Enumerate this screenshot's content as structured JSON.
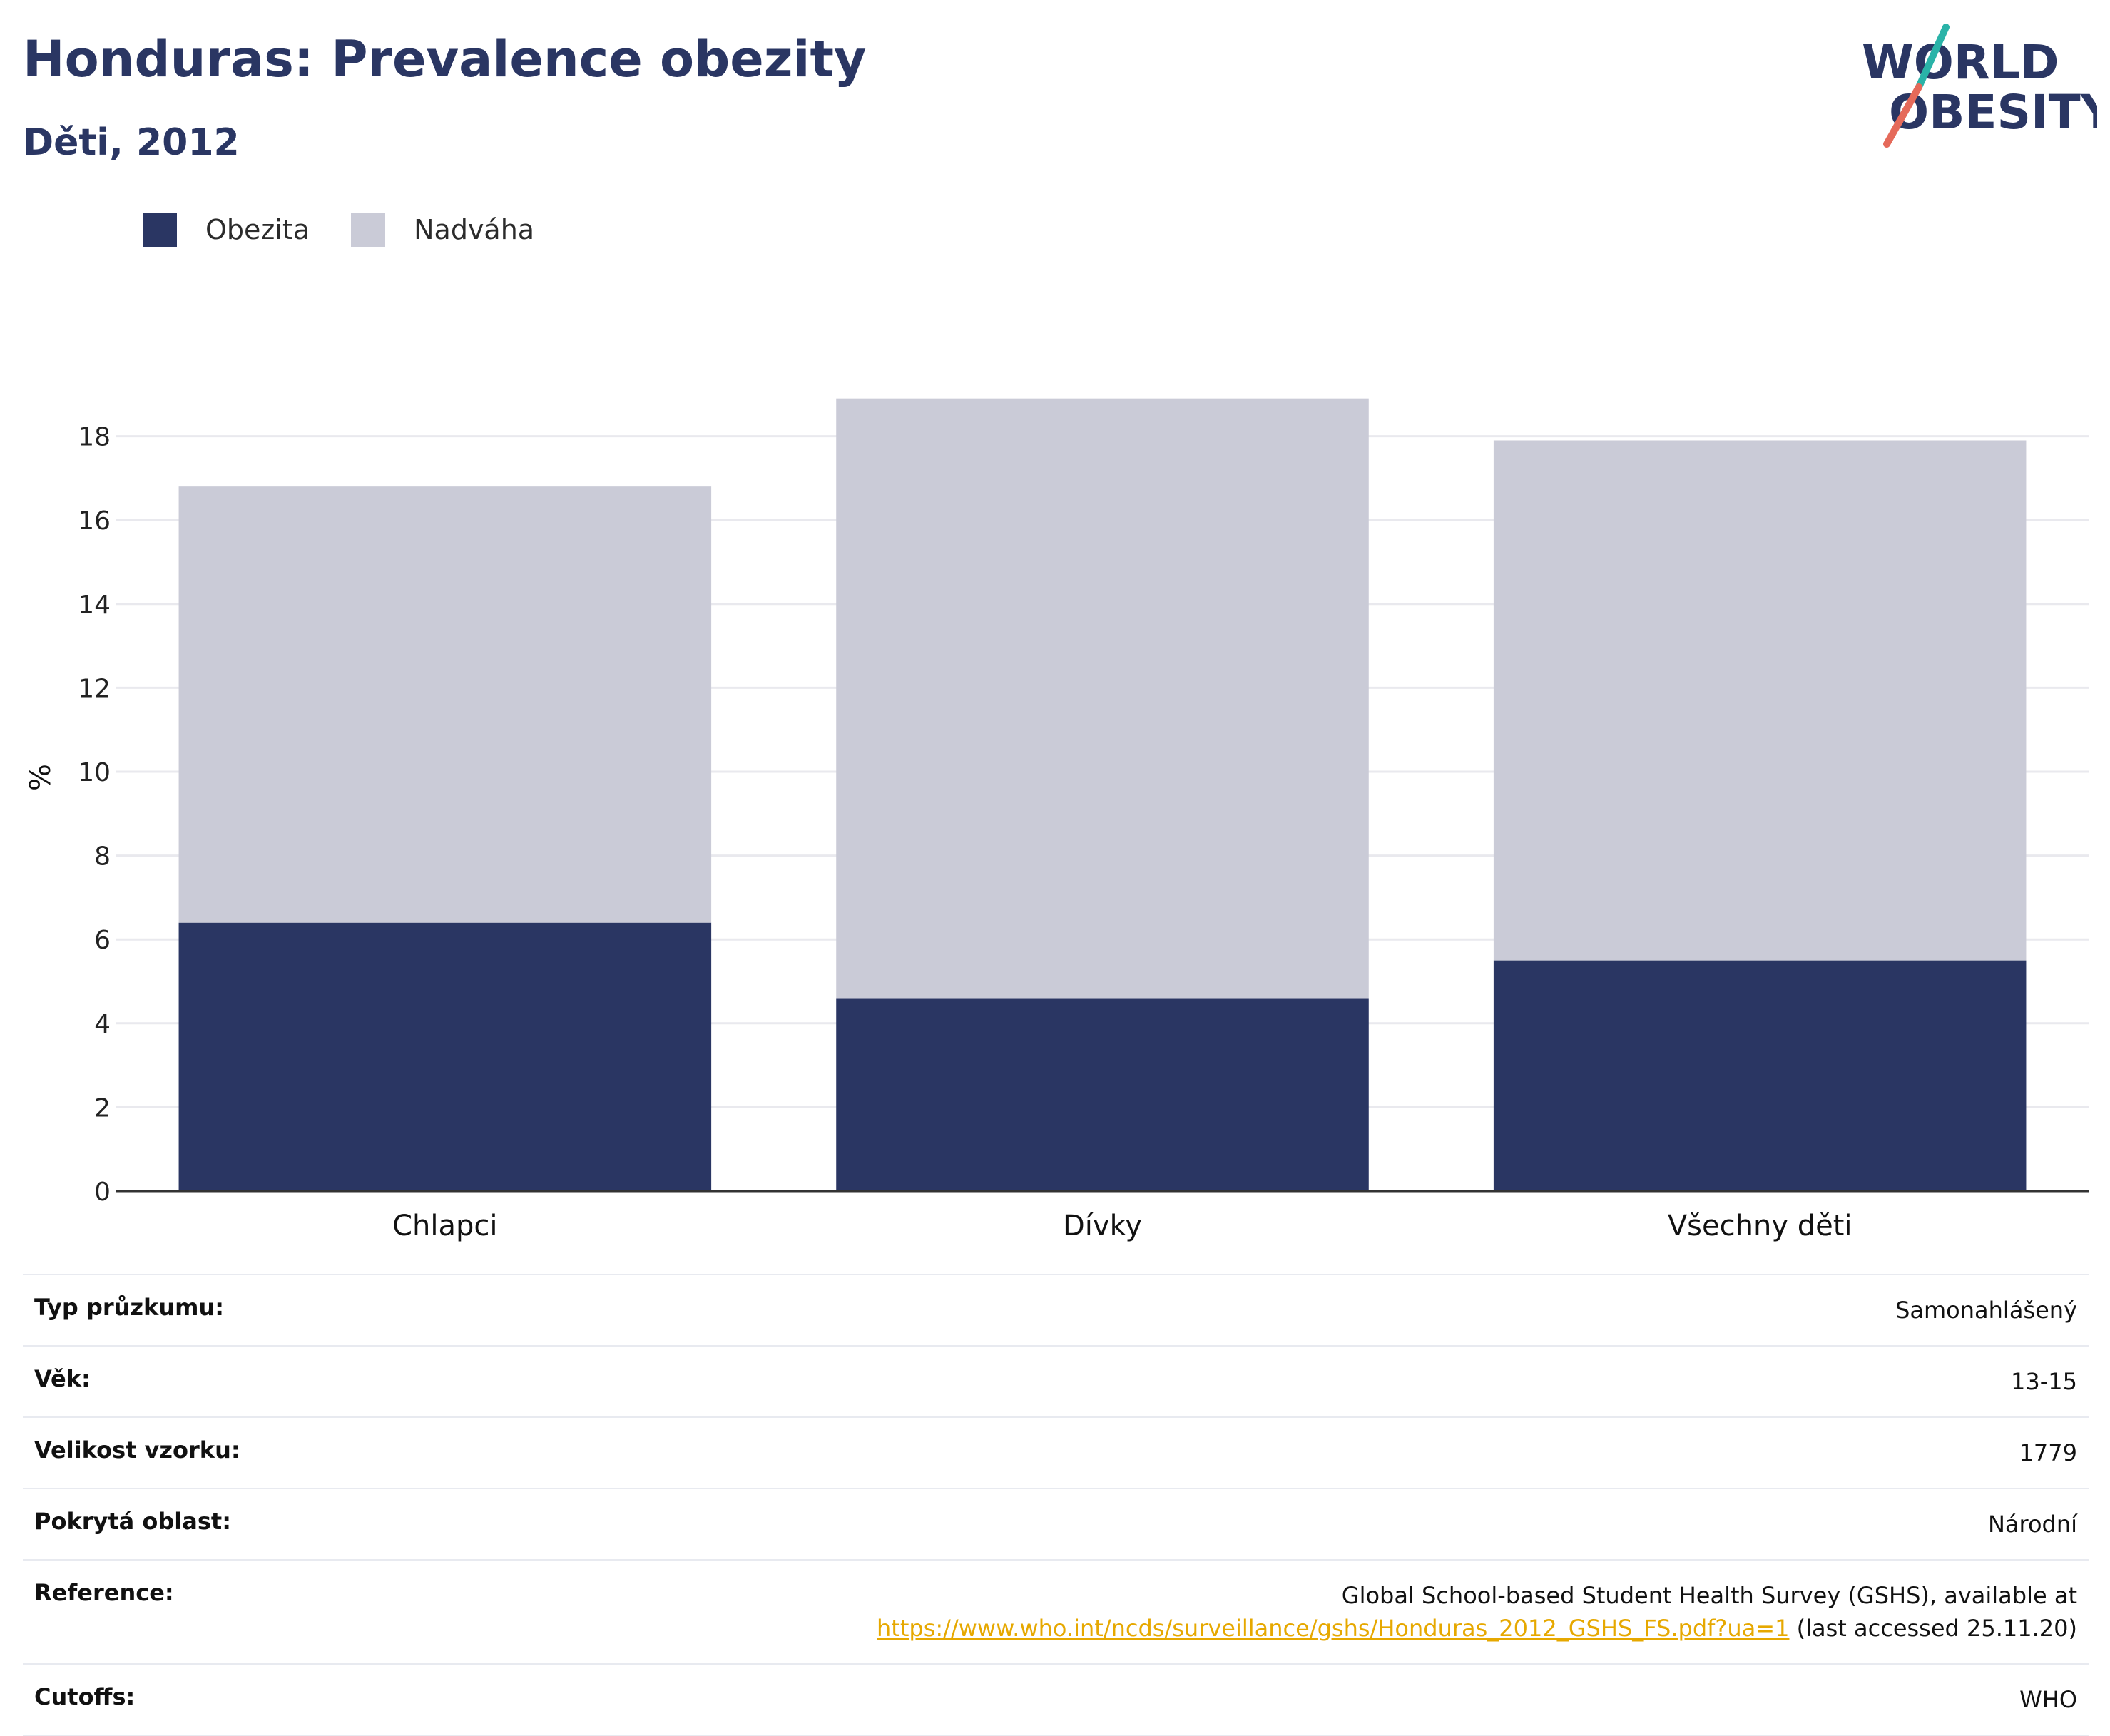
{
  "header": {
    "title": "Honduras: Prevalence obezity",
    "subtitle": "Děti, 2012",
    "logo_line1": "WORLD",
    "logo_line2": "OBESITY"
  },
  "colors": {
    "obesity": "#2a3663",
    "overweight": "#cacbd7",
    "text": "#2a3663",
    "link": "#e6a800",
    "logo_teal": "#2ab3a8",
    "logo_coral": "#e56a5a"
  },
  "chart_data": {
    "type": "bar",
    "stacked": true,
    "categories": [
      "Chlapci",
      "Dívky",
      "Všechny děti"
    ],
    "series": [
      {
        "name": "Obezita",
        "values": [
          6.4,
          4.6,
          5.5
        ]
      },
      {
        "name": "Nadváha",
        "values": [
          10.4,
          14.3,
          12.4
        ]
      }
    ],
    "ylabel": "%",
    "yticks": [
      0,
      2,
      4,
      6,
      8,
      10,
      12,
      14,
      16,
      18
    ],
    "ylim": [
      0,
      19
    ],
    "grid": true,
    "legend_position": "top-left"
  },
  "info": {
    "rows": [
      {
        "label": "Typ průzkumu:",
        "value": "Samonahlášený"
      },
      {
        "label": "Věk:",
        "value": "13-15"
      },
      {
        "label": "Velikost vzorku:",
        "value": "1779"
      },
      {
        "label": "Pokrytá oblast:",
        "value": "Národní"
      }
    ],
    "reference": {
      "label": "Reference:",
      "line1": "Global School-based Student Health Survey (GSHS), available at",
      "link": "https://www.who.int/ncds/surveillance/gshs/Honduras_2012_GSHS_FS.pdf?ua=1",
      "suffix": " (last accessed 25.11.20)"
    },
    "cutoffs": {
      "label": "Cutoffs:",
      "value": "WHO"
    }
  }
}
